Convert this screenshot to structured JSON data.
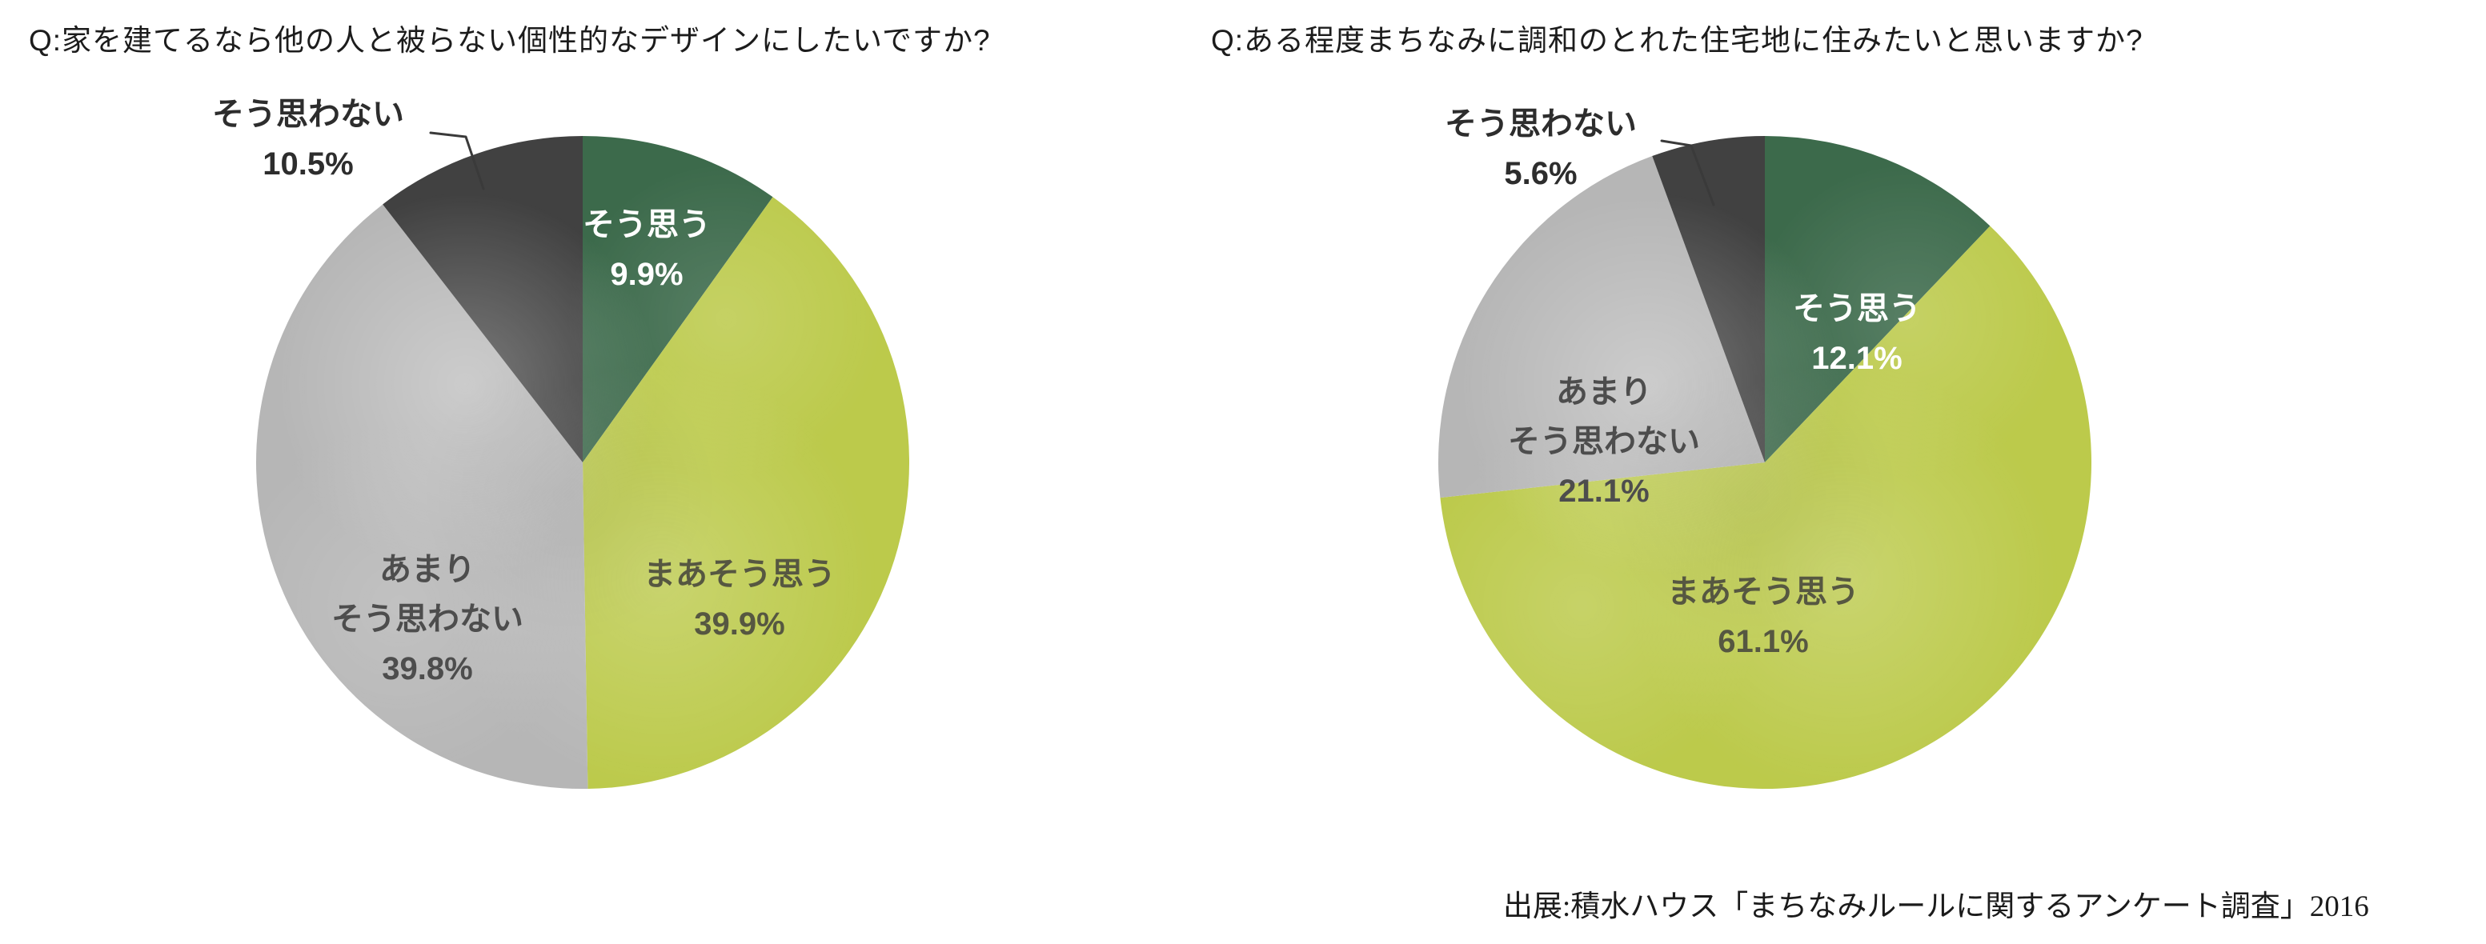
{
  "background": "#ffffff",
  "source_note": "出展:積水ハウス「まちなみルールに関するアンケート調査」2016",
  "chart_data": [
    {
      "type": "pie",
      "title": "Q:家を建てるなら他の人と被らない個性的なデザインにしたいですか?",
      "unit": "%",
      "direction": "clockwise",
      "start_angle": "12-oclock",
      "legend": "none",
      "slices": [
        {
          "label": "そう思う",
          "label_lines": [
            "そう思う"
          ],
          "value": 9.9,
          "pct_label": "9.9%",
          "color": "#3c6a4b",
          "label_color": "#ffffff",
          "label_placement": "inside"
        },
        {
          "label": "まあそう思う",
          "label_lines": [
            "まあそう思う"
          ],
          "value": 39.9,
          "pct_label": "39.9%",
          "color": "#bcca4b",
          "label_color": "#565741",
          "label_placement": "inside"
        },
        {
          "label": "あまりそう思わない",
          "label_lines": [
            "あまり",
            "そう思わない"
          ],
          "value": 39.8,
          "pct_label": "39.8%",
          "color": "#b6b6b6",
          "label_color": "#4d4d4d",
          "label_placement": "inside"
        },
        {
          "label": "そう思わない",
          "label_lines": [
            "そう思わない"
          ],
          "value": 10.5,
          "pct_label": "10.5%",
          "color": "#414141",
          "label_color": "#2d2d2d",
          "label_placement": "outside-leader-line"
        }
      ]
    },
    {
      "type": "pie",
      "title": "Q:ある程度まちなみに調和のとれた住宅地に住みたいと思いますか?",
      "unit": "%",
      "direction": "clockwise",
      "start_angle": "12-oclock",
      "legend": "none",
      "slices": [
        {
          "label": "そう思う",
          "label_lines": [
            "そう思う"
          ],
          "value": 12.1,
          "pct_label": "12.1%",
          "color": "#3c6a4b",
          "label_color": "#ffffff",
          "label_placement": "inside"
        },
        {
          "label": "まあそう思う",
          "label_lines": [
            "まあそう思う"
          ],
          "value": 61.1,
          "pct_label": "61.1%",
          "color": "#bcca4b",
          "label_color": "#565741",
          "label_placement": "inside"
        },
        {
          "label": "あまりそう思わない",
          "label_lines": [
            "あまり",
            "そう思わない"
          ],
          "value": 21.1,
          "pct_label": "21.1%",
          "color": "#b6b6b6",
          "label_color": "#4d4d4d",
          "label_placement": "inside"
        },
        {
          "label": "そう思わない",
          "label_lines": [
            "そう思わない"
          ],
          "value": 5.6,
          "pct_label": "5.6%",
          "color": "#414141",
          "label_color": "#2d2d2d",
          "label_placement": "outside-leader-line"
        }
      ]
    }
  ]
}
